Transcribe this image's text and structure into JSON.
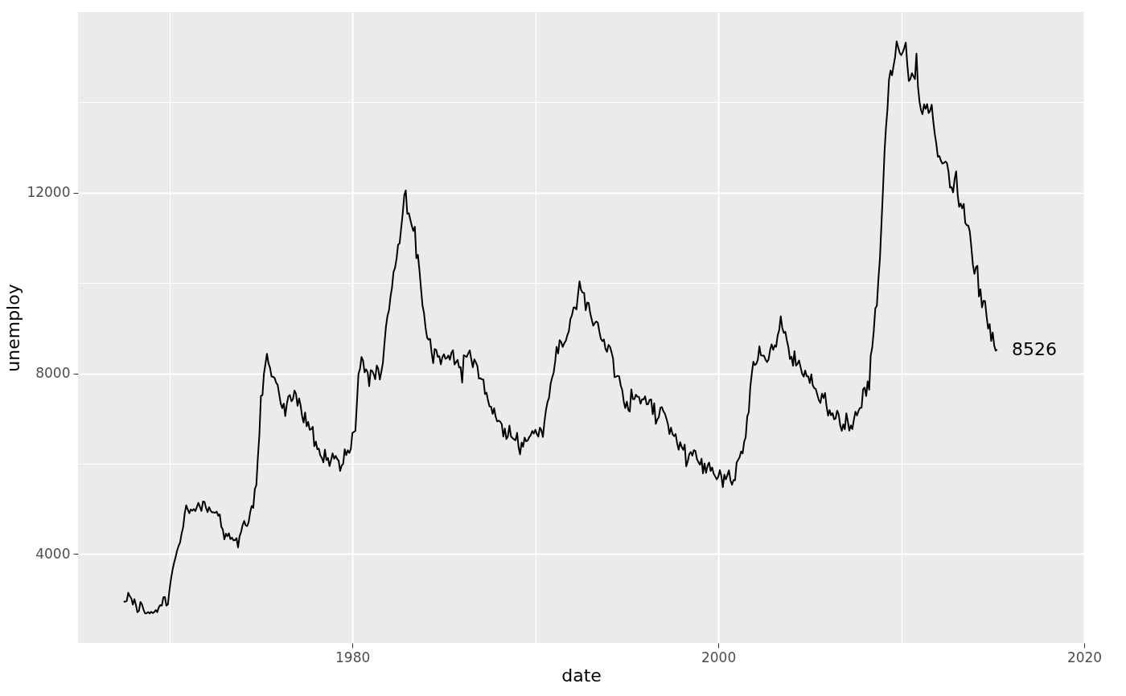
{
  "chart_data": {
    "type": "line",
    "xlabel": "date",
    "ylabel": "unemploy",
    "xlim": [
      "1965-01-01",
      "2020-01-01"
    ],
    "ylim": [
      2030,
      16000
    ],
    "xticks": [
      {
        "value": "1970",
        "label": null
      },
      "1980",
      {
        "value": "1990",
        "label": null
      },
      "2000",
      {
        "value": "2010",
        "label": null
      },
      "2020"
    ],
    "yticks": [
      4000,
      {
        "value": 6000,
        "label": null
      },
      8000,
      {
        "value": 10000,
        "label": null
      },
      12000,
      {
        "value": 14000,
        "label": null
      }
    ],
    "grid": true,
    "legend": false,
    "marker": "none",
    "line_style": "solid",
    "annotations": [
      {
        "text": "8526",
        "x": "2015-04",
        "y": 8526
      }
    ],
    "x": [
      "1967-07",
      "1967-08",
      "1967-09",
      "1967-10",
      "1967-11",
      "1967-12",
      "1968-01",
      "1968-02",
      "1968-03",
      "1968-04",
      "1968-05",
      "1968-06",
      "1968-07",
      "1968-08",
      "1968-09",
      "1968-10",
      "1968-11",
      "1968-12",
      "1969-01",
      "1969-02",
      "1969-03",
      "1969-04",
      "1969-05",
      "1969-06",
      "1969-07",
      "1969-08",
      "1969-09",
      "1969-10",
      "1969-11",
      "1969-12",
      "1970-01",
      "1970-02",
      "1970-03",
      "1970-04",
      "1970-05",
      "1970-06",
      "1970-07",
      "1970-08",
      "1970-09",
      "1970-10",
      "1970-11",
      "1970-12",
      "1971-01",
      "1971-02",
      "1971-03",
      "1971-04",
      "1971-05",
      "1971-06",
      "1971-07",
      "1971-08",
      "1971-09",
      "1971-10",
      "1971-11",
      "1971-12",
      "1972-01",
      "1972-02",
      "1972-03",
      "1972-04",
      "1972-05",
      "1972-06",
      "1972-07",
      "1972-08",
      "1972-09",
      "1972-10",
      "1972-11",
      "1972-12",
      "1973-01",
      "1973-02",
      "1973-03",
      "1973-04",
      "1973-05",
      "1973-06",
      "1973-07",
      "1973-08",
      "1973-09",
      "1973-10",
      "1973-11",
      "1973-12",
      "1974-01",
      "1974-02",
      "1974-03",
      "1974-04",
      "1974-05",
      "1974-06",
      "1974-07",
      "1974-08",
      "1974-09",
      "1974-10",
      "1974-11",
      "1974-12",
      "1975-01",
      "1975-02",
      "1975-03",
      "1975-04",
      "1975-05",
      "1975-06",
      "1975-07",
      "1975-08",
      "1975-09",
      "1975-10",
      "1975-11",
      "1975-12",
      "1976-01",
      "1976-02",
      "1976-03",
      "1976-04",
      "1976-05",
      "1976-06",
      "1976-07",
      "1976-08",
      "1976-09",
      "1976-10",
      "1976-11",
      "1976-12",
      "1977-01",
      "1977-02",
      "1977-03",
      "1977-04",
      "1977-05",
      "1977-06",
      "1977-07",
      "1977-08",
      "1977-09",
      "1977-10",
      "1977-11",
      "1977-12",
      "1978-01",
      "1978-02",
      "1978-03",
      "1978-04",
      "1978-05",
      "1978-06",
      "1978-07",
      "1978-08",
      "1978-09",
      "1978-10",
      "1978-11",
      "1978-12",
      "1979-01",
      "1979-02",
      "1979-03",
      "1979-04",
      "1979-05",
      "1979-06",
      "1979-07",
      "1979-08",
      "1979-09",
      "1979-10",
      "1979-11",
      "1979-12",
      "1980-01",
      "1980-02",
      "1980-03",
      "1980-04",
      "1980-05",
      "1980-06",
      "1980-07",
      "1980-08",
      "1980-09",
      "1980-10",
      "1980-11",
      "1980-12",
      "1981-01",
      "1981-02",
      "1981-03",
      "1981-04",
      "1981-05",
      "1981-06",
      "1981-07",
      "1981-08",
      "1981-09",
      "1981-10",
      "1981-11",
      "1981-12",
      "1982-01",
      "1982-02",
      "1982-03",
      "1982-04",
      "1982-05",
      "1982-06",
      "1982-07",
      "1982-08",
      "1982-09",
      "1982-10",
      "1982-11",
      "1982-12",
      "1983-01",
      "1983-02",
      "1983-03",
      "1983-04",
      "1983-05",
      "1983-06",
      "1983-07",
      "1983-08",
      "1983-09",
      "1983-10",
      "1983-11",
      "1983-12",
      "1984-01",
      "1984-02",
      "1984-03",
      "1984-04",
      "1984-05",
      "1984-06",
      "1984-07",
      "1984-08",
      "1984-09",
      "1984-10",
      "1984-11",
      "1984-12",
      "1985-01",
      "1985-02",
      "1985-03",
      "1985-04",
      "1985-05",
      "1985-06",
      "1985-07",
      "1985-08",
      "1985-09",
      "1985-10",
      "1985-11",
      "1985-12",
      "1986-01",
      "1986-02",
      "1986-03",
      "1986-04",
      "1986-05",
      "1986-06",
      "1986-07",
      "1986-08",
      "1986-09",
      "1986-10",
      "1986-11",
      "1986-12",
      "1987-01",
      "1987-02",
      "1987-03",
      "1987-04",
      "1987-05",
      "1987-06",
      "1987-07",
      "1987-08",
      "1987-09",
      "1987-10",
      "1987-11",
      "1987-12",
      "1988-01",
      "1988-02",
      "1988-03",
      "1988-04",
      "1988-05",
      "1988-06",
      "1988-07",
      "1988-08",
      "1988-09",
      "1988-10",
      "1988-11",
      "1988-12",
      "1989-01",
      "1989-02",
      "1989-03",
      "1989-04",
      "1989-05",
      "1989-06",
      "1989-07",
      "1989-08",
      "1989-09",
      "1989-10",
      "1989-11",
      "1989-12",
      "1990-01",
      "1990-02",
      "1990-03",
      "1990-04",
      "1990-05",
      "1990-06",
      "1990-07",
      "1990-08",
      "1990-09",
      "1990-10",
      "1990-11",
      "1990-12",
      "1991-01",
      "1991-02",
      "1991-03",
      "1991-04",
      "1991-05",
      "1991-06",
      "1991-07",
      "1991-08",
      "1991-09",
      "1991-10",
      "1991-11",
      "1991-12",
      "1992-01",
      "1992-02",
      "1992-03",
      "1992-04",
      "1992-05",
      "1992-06",
      "1992-07",
      "1992-08",
      "1992-09",
      "1992-10",
      "1992-11",
      "1992-12",
      "1993-01",
      "1993-02",
      "1993-03",
      "1993-04",
      "1993-05",
      "1993-06",
      "1993-07",
      "1993-08",
      "1993-09",
      "1993-10",
      "1993-11",
      "1993-12",
      "1994-01",
      "1994-02",
      "1994-03",
      "1994-04",
      "1994-05",
      "1994-06",
      "1994-07",
      "1994-08",
      "1994-09",
      "1994-10",
      "1994-11",
      "1994-12",
      "1995-01",
      "1995-02",
      "1995-03",
      "1995-04",
      "1995-05",
      "1995-06",
      "1995-07",
      "1995-08",
      "1995-09",
      "1995-10",
      "1995-11",
      "1995-12",
      "1996-01",
      "1996-02",
      "1996-03",
      "1996-04",
      "1996-05",
      "1996-06",
      "1996-07",
      "1996-08",
      "1996-09",
      "1996-10",
      "1996-11",
      "1996-12",
      "1997-01",
      "1997-02",
      "1997-03",
      "1997-04",
      "1997-05",
      "1997-06",
      "1997-07",
      "1997-08",
      "1997-09",
      "1997-10",
      "1997-11",
      "1997-12",
      "1998-01",
      "1998-02",
      "1998-03",
      "1998-04",
      "1998-05",
      "1998-06",
      "1998-07",
      "1998-08",
      "1998-09",
      "1998-10",
      "1998-11",
      "1998-12",
      "1999-01",
      "1999-02",
      "1999-03",
      "1999-04",
      "1999-05",
      "1999-06",
      "1999-07",
      "1999-08",
      "1999-09",
      "1999-10",
      "1999-11",
      "1999-12",
      "2000-01",
      "2000-02",
      "2000-03",
      "2000-04",
      "2000-05",
      "2000-06",
      "2000-07",
      "2000-08",
      "2000-09",
      "2000-10",
      "2000-11",
      "2000-12",
      "2001-01",
      "2001-02",
      "2001-03",
      "2001-04",
      "2001-05",
      "2001-06",
      "2001-07",
      "2001-08",
      "2001-09",
      "2001-10",
      "2001-11",
      "2001-12",
      "2002-01",
      "2002-02",
      "2002-03",
      "2002-04",
      "2002-05",
      "2002-06",
      "2002-07",
      "2002-08",
      "2002-09",
      "2002-10",
      "2002-11",
      "2002-12",
      "2003-01",
      "2003-02",
      "2003-03",
      "2003-04",
      "2003-05",
      "2003-06",
      "2003-07",
      "2003-08",
      "2003-09",
      "2003-10",
      "2003-11",
      "2003-12",
      "2004-01",
      "2004-02",
      "2004-03",
      "2004-04",
      "2004-05",
      "2004-06",
      "2004-07",
      "2004-08",
      "2004-09",
      "2004-10",
      "2004-11",
      "2004-12",
      "2005-01",
      "2005-02",
      "2005-03",
      "2005-04",
      "2005-05",
      "2005-06",
      "2005-07",
      "2005-08",
      "2005-09",
      "2005-10",
      "2005-11",
      "2005-12",
      "2006-01",
      "2006-02",
      "2006-03",
      "2006-04",
      "2006-05",
      "2006-06",
      "2006-07",
      "2006-08",
      "2006-09",
      "2006-10",
      "2006-11",
      "2006-12",
      "2007-01",
      "2007-02",
      "2007-03",
      "2007-04",
      "2007-05",
      "2007-06",
      "2007-07",
      "2007-08",
      "2007-09",
      "2007-10",
      "2007-11",
      "2007-12",
      "2008-01",
      "2008-02",
      "2008-03",
      "2008-04",
      "2008-05",
      "2008-06",
      "2008-07",
      "2008-08",
      "2008-09",
      "2008-10",
      "2008-11",
      "2008-12",
      "2009-01",
      "2009-02",
      "2009-03",
      "2009-04",
      "2009-05",
      "2009-06",
      "2009-07",
      "2009-08",
      "2009-09",
      "2009-10",
      "2009-11",
      "2009-12",
      "2010-01",
      "2010-02",
      "2010-03",
      "2010-04",
      "2010-05",
      "2010-06",
      "2010-07",
      "2010-08",
      "2010-09",
      "2010-10",
      "2010-11",
      "2010-12",
      "2011-01",
      "2011-02",
      "2011-03",
      "2011-04",
      "2011-05",
      "2011-06",
      "2011-07",
      "2011-08",
      "2011-09",
      "2011-10",
      "2011-11",
      "2011-12",
      "2012-01",
      "2012-02",
      "2012-03",
      "2012-04",
      "2012-05",
      "2012-06",
      "2012-07",
      "2012-08",
      "2012-09",
      "2012-10",
      "2012-11",
      "2012-12",
      "2013-01",
      "2013-02",
      "2013-03",
      "2013-04",
      "2013-05",
      "2013-06",
      "2013-07",
      "2013-08",
      "2013-09",
      "2013-10",
      "2013-11",
      "2013-12",
      "2014-01",
      "2014-02",
      "2014-03",
      "2014-04",
      "2014-05",
      "2014-06",
      "2014-07",
      "2014-08",
      "2014-09",
      "2014-10",
      "2014-11",
      "2014-12",
      "2015-01",
      "2015-02",
      "2015-03",
      "2015-04"
    ],
    "series": [
      {
        "color": "#000000",
        "values": [
          2944,
          2945,
          2958,
          3143,
          3066,
          3018,
          2878,
          3001,
          2877,
          2709,
          2740,
          2938,
          2883,
          2768,
          2686,
          2689,
          2715,
          2685,
          2718,
          2692,
          2712,
          2758,
          2713,
          2816,
          2868,
          2856,
          3040,
          3049,
          2856,
          2884,
          3201,
          3453,
          3635,
          3797,
          3919,
          4071,
          4175,
          4256,
          4456,
          4591,
          4898,
          5076,
          4986,
          4903,
          4987,
          4959,
          4996,
          4949,
          5035,
          5134,
          5042,
          4954,
          5161,
          5154,
          5019,
          4928,
          5038,
          4959,
          4922,
          4923,
          4913,
          4939,
          4849,
          4875,
          4602,
          4543,
          4326,
          4452,
          4394,
          4459,
          4329,
          4363,
          4305,
          4305,
          4350,
          4144,
          4396,
          4489,
          4644,
          4731,
          4634,
          4618,
          4705,
          4927,
          5063,
          5022,
          5437,
          5523,
          6140,
          6636,
          7501,
          7520,
          7978,
          8210,
          8433,
          8220,
          8127,
          7928,
          7923,
          7897,
          7794,
          7744,
          7534,
          7326,
          7230,
          7330,
          7053,
          7322,
          7490,
          7518,
          7380,
          7430,
          7620,
          7545,
          7280,
          7443,
          7307,
          7059,
          6911,
          7134,
          6829,
          6925,
          6751,
          6763,
          6815,
          6386,
          6489,
          6318,
          6337,
          6180,
          6127,
          6028,
          6309,
          6080,
          6125,
          5947,
          6077,
          6228,
          6109,
          6173,
          6109,
          6069,
          5840,
          5959,
          5996,
          6320,
          6190,
          6296,
          6238,
          6325,
          6683,
          6702,
          6729,
          7358,
          7984,
          8098,
          8363,
          8281,
          8021,
          8088,
          8023,
          7718,
          8071,
          8051,
          7982,
          7869,
          8174,
          8098,
          7863,
          8036,
          8230,
          8646,
          9029,
          9267,
          9397,
          9705,
          9895,
          10244,
          10335,
          10538,
          10849,
          10881,
          11217,
          11529,
          11938,
          12051,
          11534,
          11545,
          11408,
          11268,
          11154,
          11246,
          10548,
          10623,
          10282,
          9887,
          9499,
          9331,
          9008,
          8791,
          8746,
          8762,
          8456,
          8226,
          8537,
          8519,
          8367,
          8381,
          8198,
          8358,
          8423,
          8321,
          8339,
          8395,
          8302,
          8460,
          8513,
          8196,
          8248,
          8298,
          8128,
          8138,
          7795,
          8402,
          8383,
          8364,
          8439,
          8508,
          8319,
          8135,
          8310,
          8243,
          8159,
          7883,
          7892,
          7865,
          7862,
          7542,
          7574,
          7398,
          7268,
          7261,
          7102,
          7227,
          7035,
          6936,
          6953,
          6929,
          6876,
          6601,
          6779,
          6546,
          6605,
          6843,
          6604,
          6568,
          6537,
          6518,
          6682,
          6359,
          6205,
          6468,
          6375,
          6577,
          6495,
          6511,
          6590,
          6630,
          6725,
          6667,
          6752,
          6651,
          6598,
          6797,
          6742,
          6590,
          6922,
          7188,
          7368,
          7459,
          7764,
          7901,
          8015,
          8265,
          8586,
          8439,
          8736,
          8692,
          8586,
          8666,
          8722,
          8842,
          8931,
          9198,
          9283,
          9454,
          9460,
          9415,
          9744,
          10040,
          9850,
          9787,
          9781,
          9398,
          9565,
          9557,
          9325,
          9183,
          9056,
          9110,
          9149,
          9121,
          8930,
          8763,
          8714,
          8750,
          8542,
          8477,
          8630,
          8583,
          8470,
          8331,
          7915,
          7927,
          7946,
          7933,
          7734,
          7632,
          7375,
          7230,
          7375,
          7187,
          7153,
          7645,
          7430,
          7427,
          7527,
          7484,
          7478,
          7328,
          7426,
          7423,
          7491,
          7313,
          7318,
          7415,
          7423,
          7095,
          7337,
          6882,
          6979,
          7031,
          7236,
          7253,
          7158,
          7102,
          7000,
          6873,
          6655,
          6799,
          6655,
          6608,
          6656,
          6454,
          6308,
          6476,
          6368,
          6306,
          6422,
          5941,
          6047,
          6212,
          6259,
          6179,
          6300,
          6280,
          6100,
          6032,
          5976,
          6111,
          5783,
          6004,
          5796,
          5951,
          6025,
          5838,
          5915,
          5778,
          5716,
          5653,
          5708,
          5858,
          5733,
          5481,
          5758,
          5651,
          5747,
          5853,
          5625,
          5534,
          5639,
          5634,
          6023,
          6089,
          6141,
          6271,
          6226,
          6484,
          6583,
          7042,
          7142,
          7694,
          8003,
          8258,
          8182,
          8215,
          8304,
          8599,
          8399,
          8393,
          8390,
          8304,
          8251,
          8307,
          8520,
          8640,
          8520,
          8618,
          8588,
          8842,
          8957,
          9266,
          9011,
          8896,
          8921,
          8732,
          8576,
          8317,
          8370,
          8167,
          8491,
          8170,
          8212,
          8286,
          8136,
          7990,
          7927,
          8061,
          7932,
          7934,
          7784,
          7980,
          7737,
          7672,
          7651,
          7524,
          7406,
          7345,
          7553,
          7453,
          7566,
          7279,
          7064,
          7184,
          7072,
          7120,
          6980,
          7001,
          7175,
          7091,
          6847,
          6727,
          6872,
          6762,
          7116,
          6927,
          6731,
          6850,
          6766,
          6979,
          7149,
          7067,
          7170,
          7237,
          7240,
          7645,
          7685,
          7497,
          7822,
          7637,
          8395,
          8575,
          8937,
          9438,
          9494,
          10074,
          10538,
          11286,
          12058,
          12898,
          13426,
          13853,
          14499,
          14707,
          14601,
          14814,
          15009,
          15352,
          15219,
          15098,
          15046,
          15113,
          15202,
          15325,
          14849,
          14474,
          14512,
          14648,
          14579,
          14516,
          15081,
          14348,
          14013,
          13820,
          13737,
          13957,
          13855,
          13962,
          13763,
          13818,
          13948,
          13594,
          13302,
          13093,
          12797,
          12813,
          12713,
          12646,
          12660,
          12692,
          12656,
          12471,
          12115,
          12124,
          12005,
          12298,
          12471,
          11950,
          11689,
          11760,
          11654,
          11751,
          11335,
          11279,
          11270,
          11136,
          10787,
          10404,
          10202,
          10349,
          10380,
          9702,
          9859,
          9460,
          9608,
          9599,
          9262,
          8990,
          9090,
          8717,
          8903,
          8610,
          8504,
          8526
        ]
      }
    ]
  }
}
